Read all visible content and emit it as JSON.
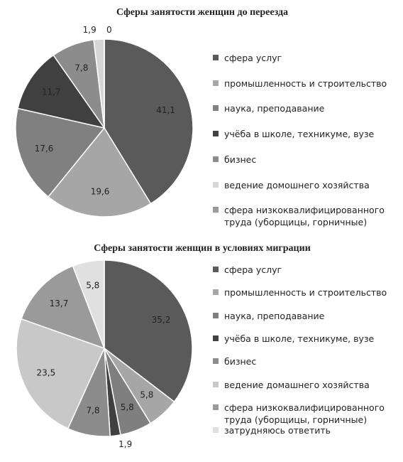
{
  "chart_data": [
    {
      "type": "pie",
      "title": "Сферы занятости женщин до переезда",
      "categories": [
        "сфера услуг",
        "промышленность и строительство",
        "наука, преподавание",
        "учёба в школе, техникуме, вузе",
        "бизнес",
        "ведение домошнего хозяйства",
        "сфера низкоквалифицированного труда (уборщицы, горничные)"
      ],
      "values": [
        41.1,
        19.6,
        17.6,
        11.7,
        7.8,
        1.9,
        0
      ],
      "value_labels": [
        "41,1",
        "19,6",
        "17,6",
        "11,7",
        "7,8",
        "1,9",
        "0"
      ],
      "colors": [
        "#5a5a5a",
        "#a6a6a6",
        "#808080",
        "#404040",
        "#8c8c8c",
        "#d6d6d6",
        "#999999"
      ]
    },
    {
      "type": "pie",
      "title": "Сферы занятости женщин в условиях миграции",
      "categories": [
        "сфера услуг",
        "промышленность и строительство",
        "наука, преподавание",
        "учёба в школе, техникуме, вузе",
        "бизнес",
        "ведение домашнего хозяйства",
        "сфера низкоквалифицированного труда (уборщицы, горничные)",
        "затрудняюсь ответить"
      ],
      "values": [
        35.2,
        5.8,
        5.8,
        1.9,
        7.8,
        23.5,
        13.7,
        5.8
      ],
      "value_labels": [
        "35,2",
        "5,8",
        "5,8",
        "1,9",
        "7,8",
        "23,5",
        "13,7",
        "5,8"
      ],
      "colors": [
        "#5a5a5a",
        "#a6a6a6",
        "#7f7f7f",
        "#404040",
        "#8c8c8c",
        "#c8c8c8",
        "#9a9a9a",
        "#e0e0e0"
      ]
    }
  ]
}
